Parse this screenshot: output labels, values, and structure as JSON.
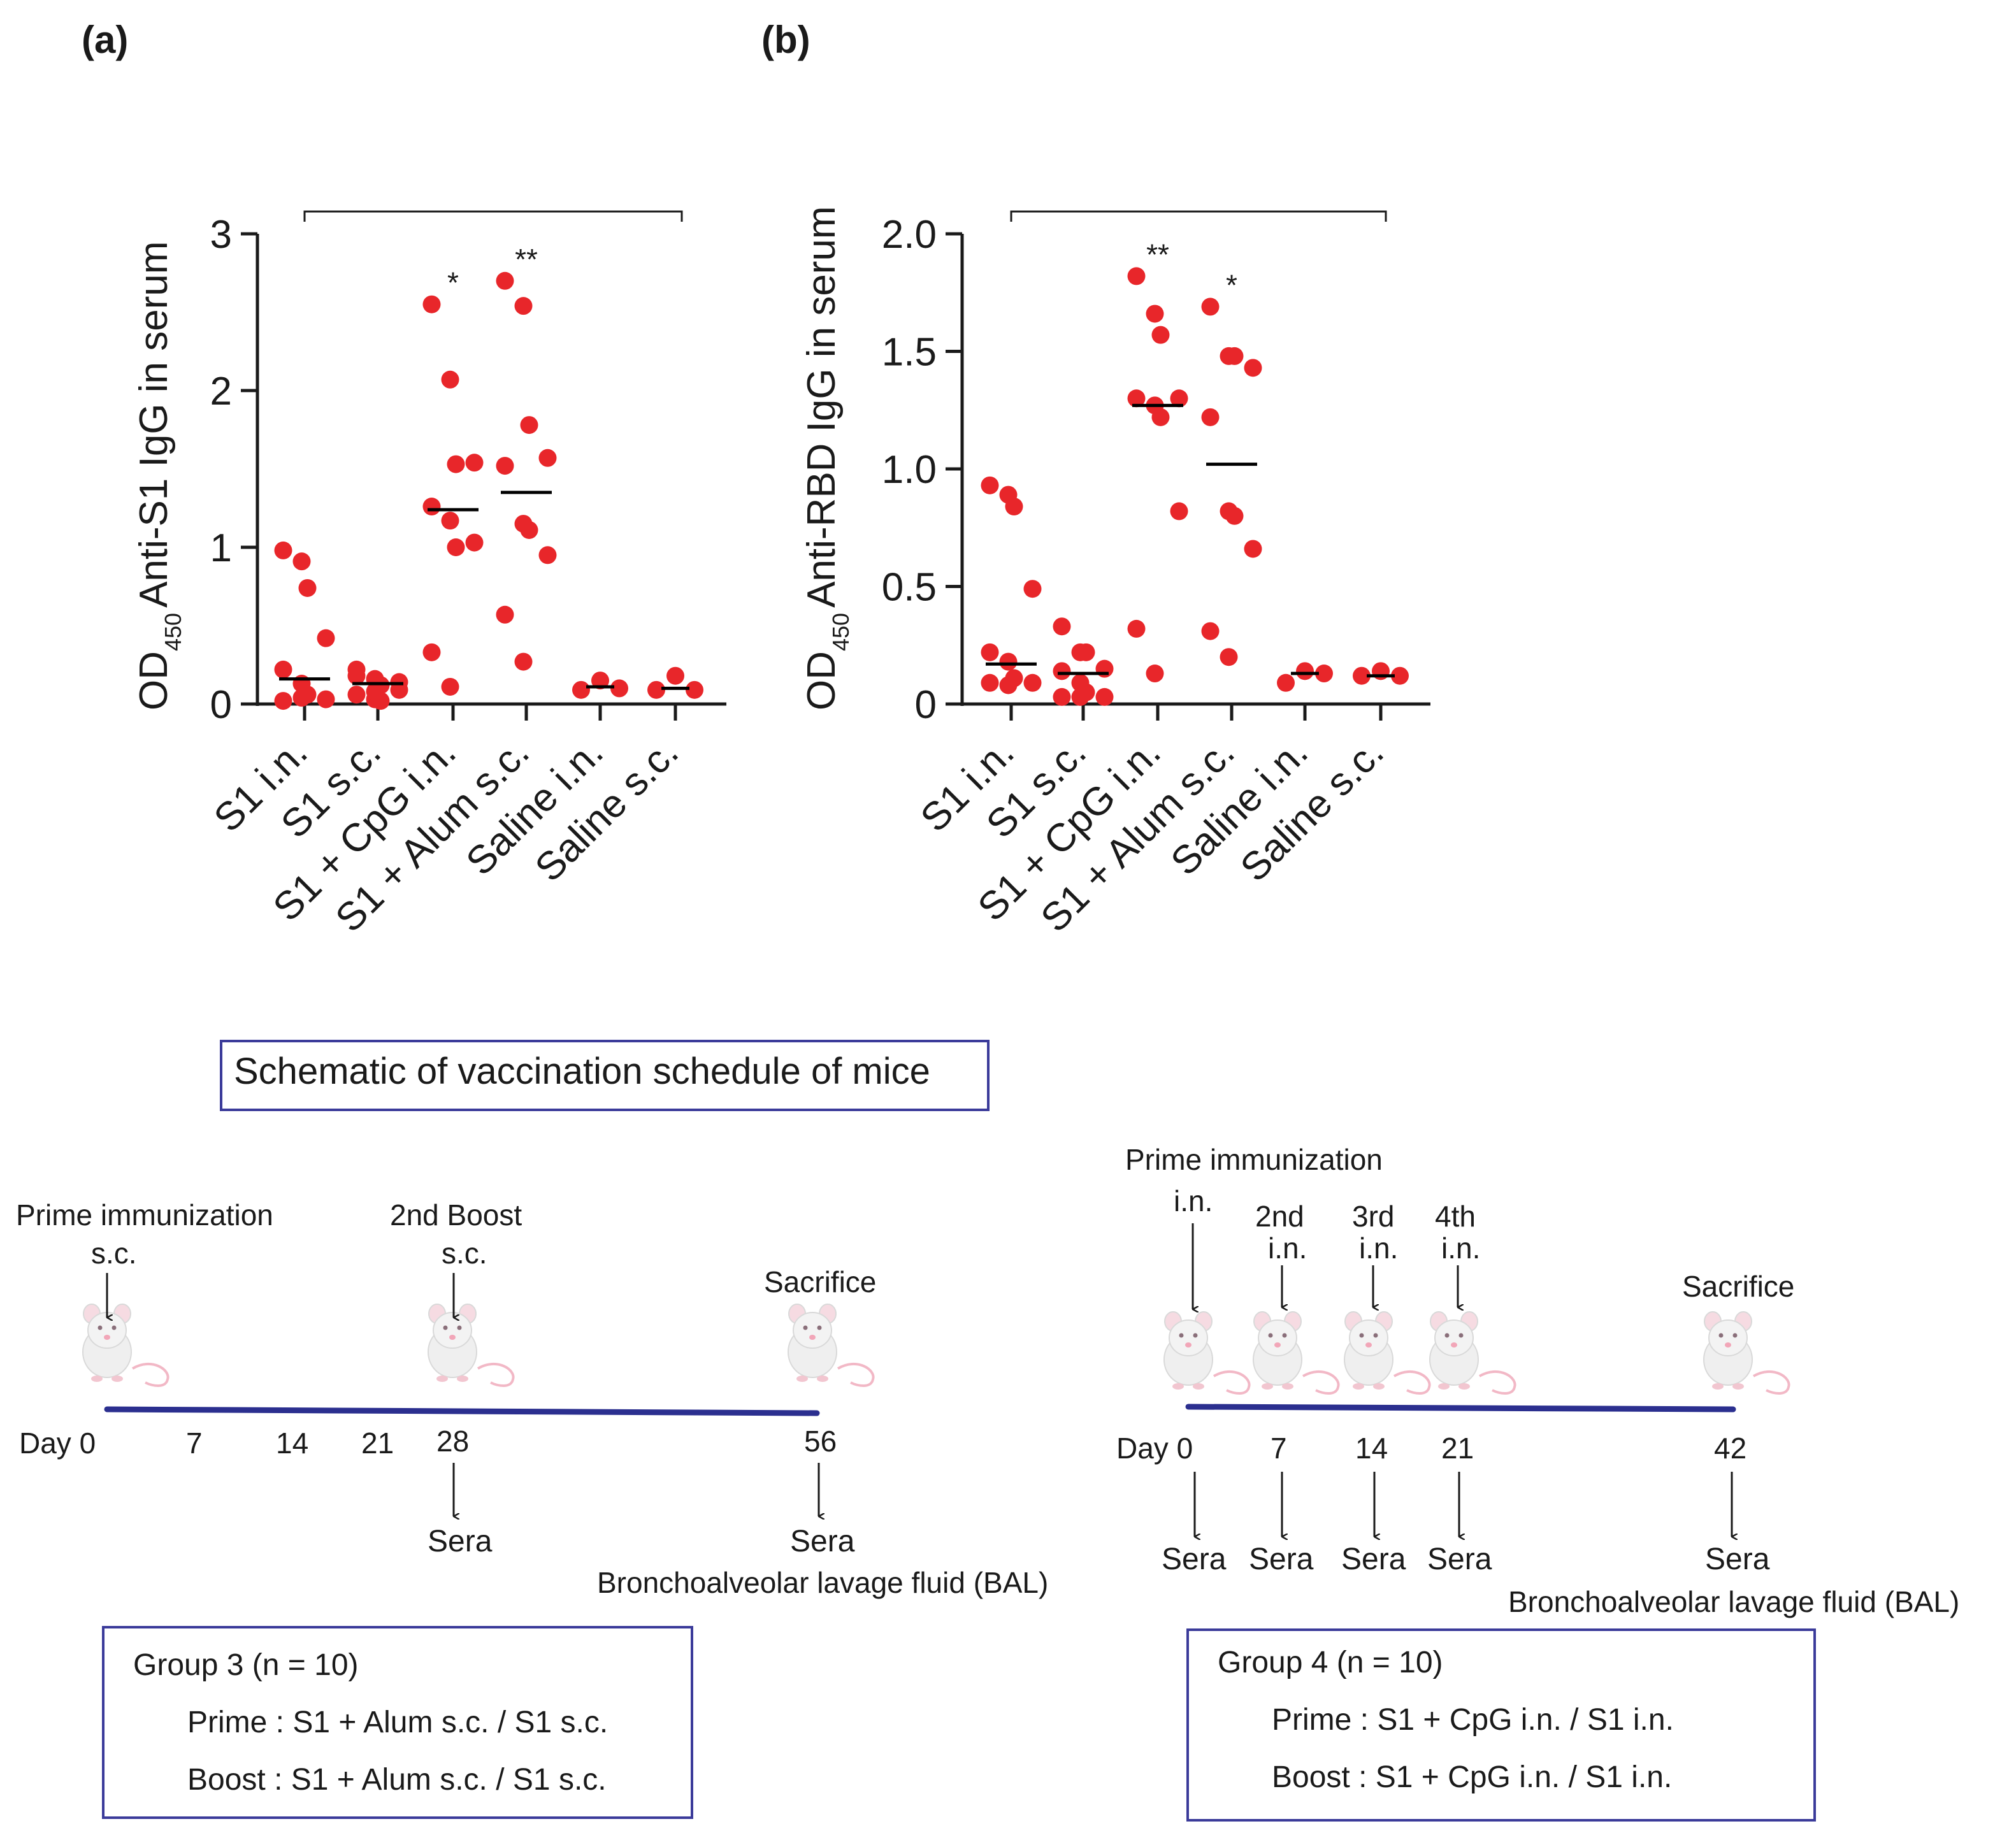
{
  "chart_data": [
    {
      "id": "a",
      "type": "scatter",
      "panel_label": "(a)",
      "ylabel": "OD450 Anti-S1 IgG in serum",
      "ylabel_main": "Anti-S1 IgG in serum",
      "ylabel_od": "OD",
      "ylabel_sub": "450",
      "ylim": [
        0,
        3
      ],
      "yticks": [
        0,
        1,
        2,
        3
      ],
      "yticklabels": [
        "0",
        "1",
        "2",
        "3"
      ],
      "categories": [
        "S1 i.n.",
        "S1 s.c.",
        "S1 + CpG i.n.",
        "S1 + Alum s.c.",
        "Saline i.n.",
        "Saline s.c."
      ],
      "points": [
        [
          0.98,
          0.91,
          0.74,
          0.42,
          0.22,
          0.13,
          0.06,
          0.03,
          0.02,
          0.04
        ],
        [
          0.22,
          0.16,
          0.12,
          0.09,
          0.06,
          0.03,
          0.02,
          0.14,
          0.18,
          0.08
        ],
        [
          2.55,
          2.07,
          1.53,
          1.54,
          1.26,
          1.17,
          1.0,
          1.03,
          0.33,
          0.11
        ],
        [
          2.7,
          2.54,
          1.78,
          1.57,
          1.52,
          1.15,
          1.11,
          0.95,
          0.57,
          0.27
        ],
        [
          0.09,
          0.15,
          0.1
        ],
        [
          0.09,
          0.18,
          0.09
        ]
      ],
      "medians": [
        0.16,
        0.13,
        1.24,
        1.35,
        0.11,
        0.1
      ],
      "significance": [
        "",
        "",
        "*",
        "**",
        "",
        ""
      ],
      "point_color": "#e8262a",
      "median_color": "#000000"
    },
    {
      "id": "b",
      "type": "scatter",
      "panel_label": "(b)",
      "ylabel": "OD450 Anti-RBD IgG in serum",
      "ylabel_main": "Anti-RBD IgG in serum",
      "ylabel_od": "OD",
      "ylabel_sub": "450",
      "ylim": [
        0,
        2
      ],
      "yticks": [
        0,
        0.5,
        1,
        1.5,
        2
      ],
      "yticklabels": [
        "0",
        "0.5",
        "1.0",
        "1.5",
        "2.0"
      ],
      "categories": [
        "S1 i.n.",
        "S1 s.c.",
        "S1 + CpG i.n.",
        "S1 + Alum s.c.",
        "Saline i.n.",
        "Saline s.c."
      ],
      "points": [
        [
          0.93,
          0.89,
          0.84,
          0.49,
          0.22,
          0.18,
          0.11,
          0.09,
          0.09,
          0.08
        ],
        [
          0.33,
          0.22,
          0.22,
          0.15,
          0.14,
          0.09,
          0.05,
          0.03,
          0.03,
          0.03
        ],
        [
          1.82,
          1.66,
          1.57,
          1.3,
          1.3,
          1.27,
          1.22,
          0.82,
          0.32,
          0.13
        ],
        [
          1.69,
          1.48,
          1.48,
          1.43,
          1.22,
          0.82,
          0.8,
          0.66,
          0.31,
          0.2
        ],
        [
          0.09,
          0.14,
          0.13
        ],
        [
          0.12,
          0.14,
          0.12
        ]
      ],
      "medians": [
        0.17,
        0.13,
        1.27,
        1.02,
        0.13,
        0.12
      ],
      "significance": [
        "",
        "",
        "**",
        "*",
        "",
        ""
      ],
      "point_color": "#e8262a",
      "median_color": "#000000"
    }
  ],
  "schematic": {
    "title": "Schematic of vaccination schedule of mice",
    "line_color": "#2b2f8f",
    "box_color": "#3b3b9a",
    "left": {
      "top_labels": [
        {
          "text": "Prime immunization"
        },
        {
          "text": "s.c."
        },
        {
          "text": "2nd Boost"
        },
        {
          "text": "s.c."
        },
        {
          "text": "Sacrifice"
        }
      ],
      "days": [
        "Day 0",
        "7",
        "14",
        "21",
        "28",
        "56"
      ],
      "bottom_labels": [
        "Sera",
        "Sera",
        "Bronchoalveolar lavage fluid (BAL)"
      ],
      "group": {
        "title": "Group 3 (n = 10)",
        "prime": "Prime : S1 + Alum s.c. / S1 s.c.",
        "boost": "Boost : S1 + Alum s.c. / S1 s.c."
      }
    },
    "right": {
      "top_labels": [
        {
          "text": "Prime immunization"
        },
        {
          "text": "i.n."
        },
        {
          "text": "2nd"
        },
        {
          "text": "i.n."
        },
        {
          "text": "3rd"
        },
        {
          "text": "i.n."
        },
        {
          "text": "4th"
        },
        {
          "text": "i.n."
        },
        {
          "text": "Sacrifice"
        }
      ],
      "days": [
        "Day 0",
        "7",
        "14",
        "21",
        "42"
      ],
      "bottom_labels": [
        "Sera",
        "Sera",
        "Sera",
        "Sera",
        "Sera",
        "Bronchoalveolar lavage fluid (BAL)"
      ],
      "group": {
        "title": "Group 4 (n = 10)",
        "prime": "Prime : S1 + CpG i.n. / S1 i.n.",
        "boost": "Boost : S1 + CpG i.n. / S1 i.n."
      }
    }
  }
}
